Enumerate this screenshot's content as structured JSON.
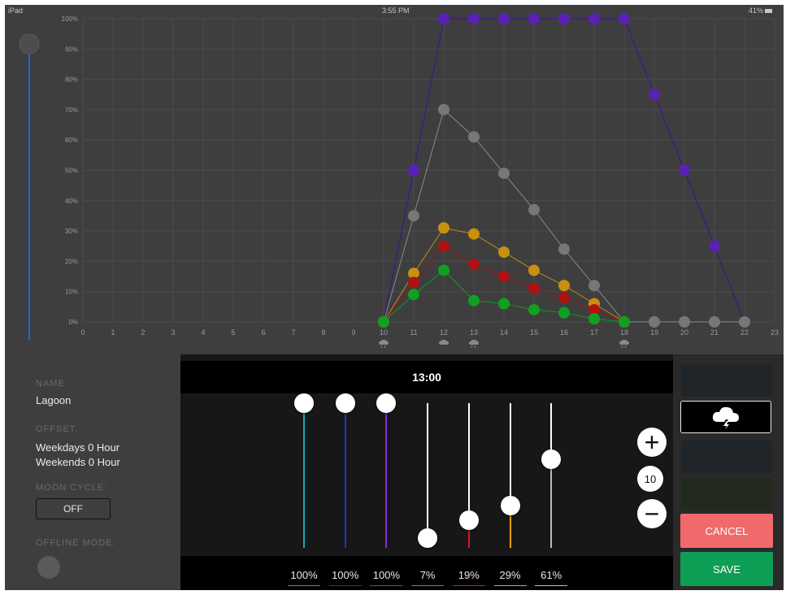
{
  "status_bar": {
    "carrier": "iPad",
    "time": "3:55 PM",
    "battery": "41%"
  },
  "chart_data": {
    "type": "line",
    "x": [
      0,
      1,
      2,
      3,
      4,
      5,
      6,
      7,
      8,
      9,
      10,
      11,
      12,
      13,
      14,
      15,
      16,
      17,
      18,
      19,
      20,
      21,
      22,
      23
    ],
    "x_tick_labels": [
      "0",
      "1",
      "2",
      "3",
      "4",
      "5",
      "6",
      "7",
      "8",
      "9",
      "10",
      "11",
      "12",
      "13",
      "14",
      "15",
      "16",
      "17",
      "18",
      "19",
      "20",
      "21",
      "22",
      "23"
    ],
    "y_tick_labels": [
      "0%",
      "10%",
      "20%",
      "30%",
      "40%",
      "50%",
      "60%",
      "70%",
      "80%",
      "90%",
      "100%"
    ],
    "xlim": [
      0,
      23
    ],
    "ylim": [
      0,
      100
    ],
    "grid": true,
    "series": [
      {
        "color": "#3a0fa0",
        "point_color": "#5b21b6",
        "x": [
          10,
          11,
          12,
          13,
          14,
          15,
          16,
          17,
          18,
          19,
          20,
          21,
          22
        ],
        "values": [
          0,
          50,
          100,
          100,
          100,
          100,
          100,
          100,
          100,
          75,
          50,
          25,
          0
        ]
      },
      {
        "color": "#8a8a8a",
        "point_color": "#777777",
        "x": [
          10,
          11,
          12,
          13,
          14,
          15,
          16,
          17,
          18,
          19,
          20,
          21,
          22
        ],
        "values": [
          0,
          35,
          70,
          61,
          49,
          37,
          24,
          12,
          0,
          0,
          0,
          0,
          0
        ]
      },
      {
        "color": "#c38a10",
        "point_color": "#c8900f",
        "x": [
          10,
          11,
          12,
          13,
          14,
          15,
          16,
          17,
          18
        ],
        "values": [
          0,
          16,
          31,
          29,
          23,
          17,
          12,
          6,
          0
        ]
      },
      {
        "color": "#a31010",
        "point_color": "#b01212",
        "x": [
          10,
          11,
          12,
          13,
          14,
          15,
          16,
          17,
          18
        ],
        "values": [
          0,
          13,
          25,
          19,
          15,
          11,
          8,
          4,
          0
        ]
      },
      {
        "color": "#109a20",
        "point_color": "#10a020",
        "x": [
          10,
          11,
          12,
          13,
          14,
          15,
          16,
          17,
          18
        ],
        "values": [
          0,
          9,
          17,
          7,
          6,
          4,
          3,
          1,
          0
        ]
      }
    ],
    "weather_markers": [
      {
        "x": 10,
        "icon": "cloud-rain-icon"
      },
      {
        "x": 12,
        "icon": "cloud-icon"
      },
      {
        "x": 13,
        "icon": "cloud-storm-icon"
      },
      {
        "x": 18,
        "icon": "cloud-rain-icon"
      }
    ]
  },
  "left_slider": {
    "value_percent": 100
  },
  "sidebar": {
    "name_label": "NAME:",
    "name_value": "Lagoon",
    "offset_label": "OFFSET:",
    "offset_weekdays": "Weekdays 0 Hour",
    "offset_weekends": "Weekends 0 Hour",
    "moon_cycle_label": "MOON CYCLE:",
    "moon_cycle_value": "OFF",
    "offline_mode_label": "OFFLINE MODE:"
  },
  "mixer": {
    "time": "13:00",
    "channels": [
      {
        "value": 100,
        "label": "100%",
        "color": "#1aa6b7"
      },
      {
        "value": 100,
        "label": "100%",
        "color": "#1a36c8"
      },
      {
        "value": 100,
        "label": "100%",
        "color": "#8a2be2"
      },
      {
        "value": 7,
        "label": "7%",
        "color": "#17c21a"
      },
      {
        "value": 19,
        "label": "19%",
        "color": "#d81b1b"
      },
      {
        "value": 29,
        "label": "29%",
        "color": "#f0a010"
      },
      {
        "value": 61,
        "label": "61%",
        "color": "#bcbcbc"
      }
    ],
    "step_value": "10",
    "plus_symbol": "+",
    "minus_symbol": "−"
  },
  "buttons": {
    "cancel_label": "CANCEL",
    "save_label": "SAVE"
  },
  "colors": {
    "cancel": "#f06a6c",
    "save": "#0e9e55",
    "accent": "#1a6ad8"
  }
}
